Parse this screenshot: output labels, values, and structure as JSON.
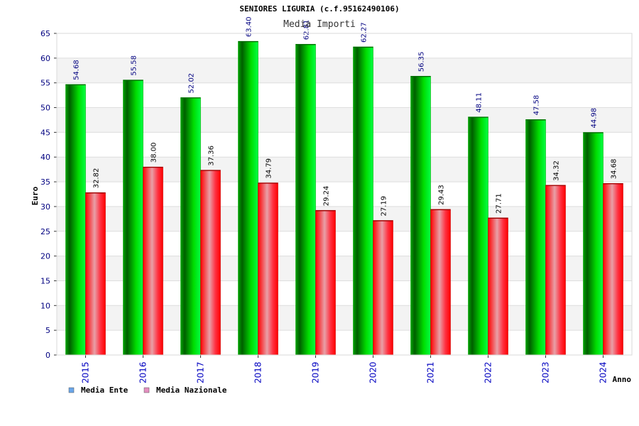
{
  "chart_data": {
    "type": "bar",
    "title": "SENIORES LIGURIA (c.f.95162490106)",
    "subtitle": "Media Importi",
    "xlabel": "Anno",
    "ylabel": "Euro",
    "ylim": [
      0,
      65
    ],
    "yticks": [
      0,
      5,
      10,
      15,
      20,
      25,
      30,
      35,
      40,
      45,
      50,
      55,
      60,
      65
    ],
    "categories": [
      "2015",
      "2016",
      "2017",
      "2018",
      "2019",
      "2020",
      "2021",
      "2022",
      "2023",
      "2024"
    ],
    "series": [
      {
        "name": "Media Ente",
        "values": [
          54.68,
          55.58,
          52.02,
          63.4,
          62.81,
          62.27,
          56.35,
          48.11,
          47.58,
          44.98
        ],
        "labels": [
          "54.68",
          "55.58",
          "52.02",
          "63.40",
          "62.81",
          "62.27",
          "56.35",
          "48.11",
          "47.58",
          "44.98"
        ],
        "color": "#00cc00",
        "legend_color": "#6aa6ea",
        "label_color": "#000080"
      },
      {
        "name": "Media Nazionale",
        "values": [
          32.82,
          38.0,
          37.36,
          34.79,
          29.24,
          27.19,
          29.43,
          27.71,
          34.32,
          34.68
        ],
        "labels": [
          "32.82",
          "38.00",
          "37.36",
          "34.79",
          "29.24",
          "27.19",
          "29.43",
          "27.71",
          "34.32",
          "34.68"
        ],
        "color": "#ee0000",
        "legend_color": "#e48fc0",
        "label_color": "#000000"
      }
    ],
    "grid": true,
    "legend": "bottom-left"
  }
}
